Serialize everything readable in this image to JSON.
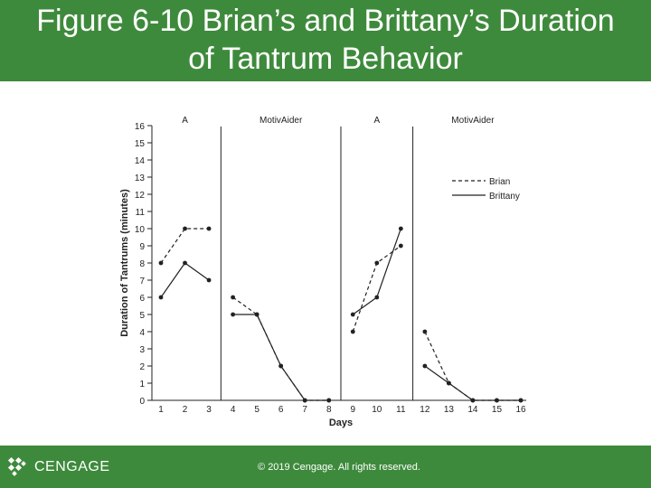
{
  "page": {
    "title_line1": "Figure 6-10 Brian’s and Brittany’s Duration",
    "title_line2": "of Tantrum Behavior",
    "brand": "CENGAGE",
    "copyright": "© 2019 Cengage. All rights reserved."
  },
  "colors": {
    "header_bg": "#3e8a3c",
    "footer_bg": "#3e8a3c",
    "line": "#222222"
  },
  "chart_data": {
    "type": "line",
    "title": "",
    "xlabel": "Days",
    "ylabel": "Duration of Tantrums (minutes)",
    "xlim": [
      1,
      16
    ],
    "ylim": [
      0,
      16
    ],
    "x_ticks": [
      1,
      2,
      3,
      4,
      5,
      6,
      7,
      8,
      9,
      10,
      11,
      12,
      13,
      14,
      15,
      16
    ],
    "y_ticks": [
      0,
      1,
      2,
      3,
      4,
      5,
      6,
      7,
      8,
      9,
      10,
      11,
      12,
      13,
      14,
      15,
      16
    ],
    "grid": false,
    "legend_position": "top-right",
    "phase_lines": [
      3.5,
      8.5,
      11.5
    ],
    "phases": [
      {
        "label": "A",
        "x": 2
      },
      {
        "label": "MotivAider",
        "x": 6
      },
      {
        "label": "A",
        "x": 10
      },
      {
        "label": "MotivAider",
        "x": 14
      }
    ],
    "series": [
      {
        "name": "Brian",
        "style": "dashed",
        "segments": [
          [
            [
              1,
              8
            ],
            [
              2,
              10
            ],
            [
              3,
              10
            ]
          ],
          [
            [
              4,
              6
            ],
            [
              5,
              5
            ],
            [
              6,
              2
            ],
            [
              7,
              0
            ],
            [
              8,
              0
            ]
          ],
          [
            [
              9,
              4
            ],
            [
              10,
              8
            ],
            [
              11,
              9
            ]
          ],
          [
            [
              12,
              4
            ],
            [
              13,
              1
            ],
            [
              14,
              0
            ],
            [
              15,
              0
            ],
            [
              16,
              0
            ]
          ]
        ]
      },
      {
        "name": "Brittany",
        "style": "solid",
        "segments": [
          [
            [
              1,
              6
            ],
            [
              2,
              8
            ],
            [
              3,
              7
            ]
          ],
          [
            [
              4,
              5
            ],
            [
              5,
              5
            ],
            [
              6,
              2
            ],
            [
              7,
              0
            ],
            [
              8,
              0
            ]
          ],
          [
            [
              9,
              5
            ],
            [
              10,
              6
            ],
            [
              11,
              10
            ]
          ],
          [
            [
              12,
              2
            ],
            [
              13,
              1
            ],
            [
              14,
              0
            ],
            [
              15,
              0
            ],
            [
              16,
              0
            ]
          ]
        ]
      }
    ]
  }
}
